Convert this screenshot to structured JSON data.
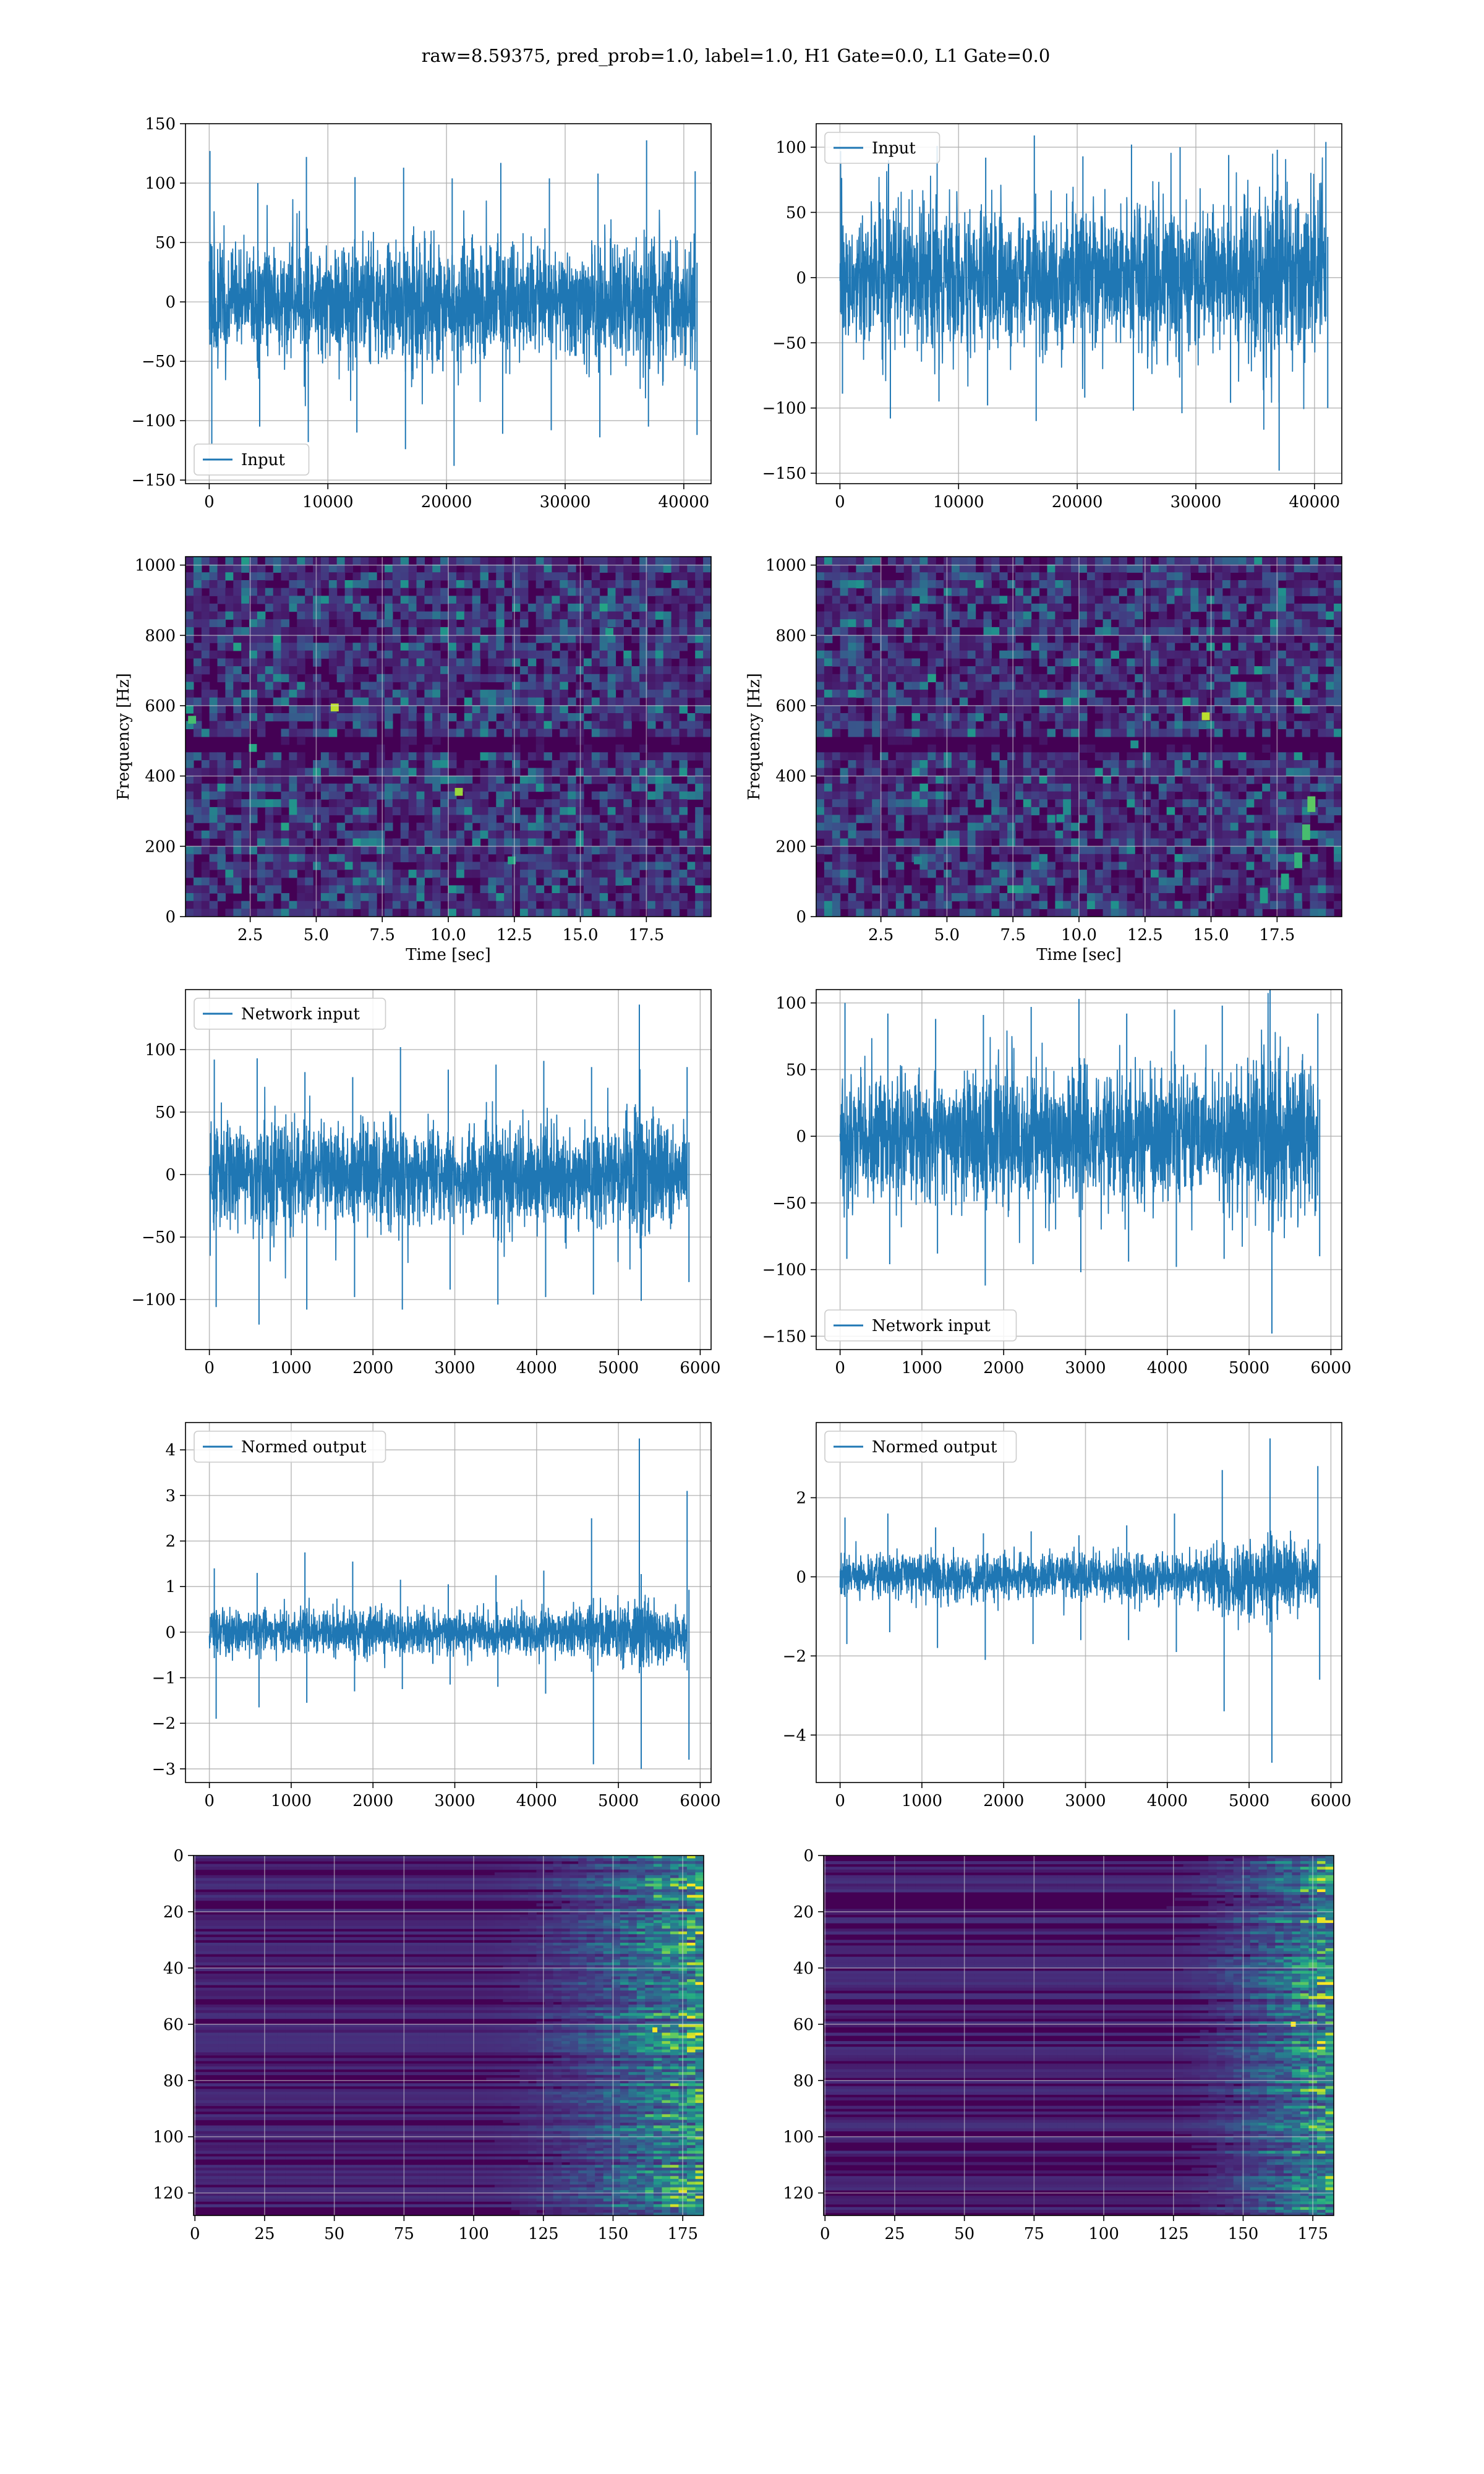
{
  "figure": {
    "title": "raw=8.59375, pred_prob=1.0, label=1.0, H1 Gate=0.0, L1 Gate=0.0"
  },
  "colors": {
    "line": "#1f77b4",
    "grid": "#b0b0b0",
    "viridis_low": "#440154",
    "viridis_mid": "#21918c",
    "viridis_high": "#fde725"
  },
  "chart_data": [
    {
      "id": "input-h1",
      "type": "line",
      "legend": [
        "Input"
      ],
      "legend_position": "lower-left",
      "grid": true,
      "xlim": [
        -2000,
        42300
      ],
      "ylim": [
        -153,
        150
      ],
      "xticks": [
        0,
        10000,
        20000,
        30000,
        40000
      ],
      "xtick_labels": [
        "0",
        "10000",
        "20000",
        "30000",
        "40000"
      ],
      "yticks": [
        -150,
        -100,
        -50,
        0,
        50,
        100,
        150
      ],
      "ytick_labels": [
        "−150",
        "−100",
        "−50",
        "0",
        "50",
        "100",
        "150"
      ],
      "series": [
        {
          "x_range": [
            0,
            40960
          ],
          "envelope_x": [
            0,
            4096,
            8192,
            12288,
            16384,
            20480,
            24576,
            28672,
            32768,
            36864,
            40960
          ],
          "upper": [
            127,
            100,
            122,
            105,
            113,
            104,
            117,
            104,
            108,
            136,
            110
          ],
          "lower": [
            -120,
            -105,
            -118,
            -110,
            -124,
            -138,
            -111,
            -108,
            -114,
            -105,
            -112
          ],
          "core_sd": 24
        }
      ]
    },
    {
      "id": "input-l1",
      "type": "line",
      "legend": [
        "Input"
      ],
      "legend_position": "upper-left",
      "grid": true,
      "xlim": [
        -2000,
        42300
      ],
      "ylim": [
        -158,
        118
      ],
      "xticks": [
        0,
        10000,
        20000,
        30000,
        40000
      ],
      "xtick_labels": [
        "0",
        "10000",
        "20000",
        "30000",
        "40000"
      ],
      "yticks": [
        -150,
        -100,
        -50,
        0,
        50,
        100
      ],
      "ytick_labels": [
        "−150",
        "−100",
        "−50",
        "0",
        "50",
        "100"
      ],
      "series": [
        {
          "x_range": [
            0,
            40960
          ],
          "envelope_x": [
            0,
            4096,
            8192,
            12288,
            16384,
            20480,
            24576,
            28672,
            32768,
            36864,
            40960
          ],
          "upper": [
            97,
            90,
            101,
            92,
            109,
            93,
            102,
            100,
            94,
            98,
            104
          ],
          "lower": [
            -89,
            -108,
            -95,
            -98,
            -110,
            -92,
            -102,
            -104,
            -96,
            -148,
            -100
          ],
          "core_sd": 24
        }
      ]
    },
    {
      "id": "spectrogram-h1",
      "type": "heatmap",
      "xlabel": "Time [sec]",
      "ylabel": "Frequency [Hz]",
      "grid": true,
      "xlim": [
        0.05,
        19.95
      ],
      "ylim": [
        0,
        1024
      ],
      "xticks": [
        2.5,
        5.0,
        7.5,
        10.0,
        12.5,
        15.0,
        17.5
      ],
      "xtick_labels": [
        "2.5",
        "5.0",
        "7.5",
        "10.0",
        "12.5",
        "15.0",
        "17.5"
      ],
      "yticks": [
        0,
        200,
        400,
        600,
        800,
        1000
      ],
      "ytick_labels": [
        "0",
        "200",
        "400",
        "600",
        "800",
        "1000"
      ],
      "cells": [
        66,
        46
      ],
      "noise_level": 0.2,
      "dark_band_hz": [
        490,
        505
      ],
      "hot_spots": [
        [
          5.7,
          595,
          0.9
        ],
        [
          10.4,
          355,
          0.85
        ],
        [
          12.4,
          160,
          0.6
        ],
        [
          2.6,
          480,
          0.6
        ],
        [
          16.1,
          810,
          0.55
        ],
        [
          0.3,
          560,
          0.7
        ]
      ],
      "chirp": null
    },
    {
      "id": "spectrogram-l1",
      "type": "heatmap",
      "xlabel": "Time [sec]",
      "ylabel": "Frequency [Hz]",
      "grid": true,
      "xlim": [
        0.05,
        19.95
      ],
      "ylim": [
        0,
        1024
      ],
      "xticks": [
        2.5,
        5.0,
        7.5,
        10.0,
        12.5,
        15.0,
        17.5
      ],
      "xtick_labels": [
        "2.5",
        "5.0",
        "7.5",
        "10.0",
        "12.5",
        "15.0",
        "17.5"
      ],
      "yticks": [
        0,
        200,
        400,
        600,
        800,
        1000
      ],
      "ytick_labels": [
        "0",
        "200",
        "400",
        "600",
        "800",
        "1000"
      ],
      "cells": [
        66,
        46
      ],
      "noise_level": 0.2,
      "dark_band_hz": [
        490,
        505
      ],
      "hot_spots": [
        [
          14.8,
          570,
          0.9
        ],
        [
          12.1,
          490,
          0.5
        ],
        [
          9.3,
          280,
          0.5
        ],
        [
          3.9,
          160,
          0.45
        ]
      ],
      "chirp": [
        [
          17.0,
          60
        ],
        [
          17.8,
          100
        ],
        [
          18.3,
          160
        ],
        [
          18.6,
          240
        ],
        [
          18.8,
          320
        ]
      ]
    },
    {
      "id": "network-input-h1",
      "type": "line",
      "legend": [
        "Network input"
      ],
      "legend_position": "upper-left",
      "grid": true,
      "xlim": [
        -292,
        6133
      ],
      "ylim": [
        -140,
        148
      ],
      "xticks": [
        0,
        1000,
        2000,
        3000,
        4000,
        5000,
        6000
      ],
      "xtick_labels": [
        "0",
        "1000",
        "2000",
        "3000",
        "4000",
        "5000",
        "6000"
      ],
      "yticks": [
        -100,
        -50,
        0,
        50,
        100
      ],
      "ytick_labels": [
        "−100",
        "−50",
        "0",
        "50",
        "100"
      ],
      "series": [
        {
          "x_range": [
            0,
            5840
          ],
          "envelope_x": [
            0,
            584,
            1168,
            1752,
            2336,
            2920,
            3504,
            4088,
            4672,
            5256,
            5840
          ],
          "upper": [
            92,
            93,
            82,
            78,
            102,
            84,
            88,
            91,
            86,
            136,
            86
          ],
          "lower": [
            -106,
            -120,
            -108,
            -98,
            -108,
            -92,
            -104,
            -98,
            -96,
            -101,
            -86
          ],
          "core_sd": 22
        }
      ]
    },
    {
      "id": "network-input-l1",
      "type": "line",
      "legend": [
        "Network input"
      ],
      "legend_position": "lower-left",
      "grid": true,
      "xlim": [
        -292,
        6133
      ],
      "ylim": [
        -160,
        110
      ],
      "xticks": [
        0,
        1000,
        2000,
        3000,
        4000,
        5000,
        6000
      ],
      "xtick_labels": [
        "0",
        "1000",
        "2000",
        "3000",
        "4000",
        "5000",
        "6000"
      ],
      "yticks": [
        -150,
        -100,
        -50,
        0,
        50,
        100
      ],
      "ytick_labels": [
        "−150",
        "−100",
        "−50",
        "0",
        "50",
        "100"
      ],
      "series": [
        {
          "x_range": [
            0,
            5840
          ],
          "envelope_x": [
            0,
            584,
            1168,
            1752,
            2336,
            2920,
            3504,
            4088,
            4672,
            5256,
            5840
          ],
          "upper": [
            100,
            92,
            88,
            91,
            97,
            103,
            92,
            95,
            98,
            110,
            92
          ],
          "lower": [
            -92,
            -96,
            -88,
            -112,
            -96,
            -102,
            -94,
            -98,
            -92,
            -148,
            -90
          ],
          "core_sd": 21
        }
      ]
    },
    {
      "id": "normed-output-h1",
      "type": "line",
      "legend": [
        "Normed output"
      ],
      "legend_position": "upper-left",
      "grid": true,
      "xlim": [
        -292,
        6133
      ],
      "ylim": [
        -3.3,
        4.6
      ],
      "xticks": [
        0,
        1000,
        2000,
        3000,
        4000,
        5000,
        6000
      ],
      "xtick_labels": [
        "0",
        "1000",
        "2000",
        "3000",
        "4000",
        "5000",
        "6000"
      ],
      "yticks": [
        -3,
        -2,
        -1,
        0,
        1,
        2,
        3,
        4
      ],
      "ytick_labels": [
        "−3",
        "−2",
        "−1",
        "0",
        "1",
        "2",
        "3",
        "4"
      ],
      "series": [
        {
          "x_range": [
            0,
            5840
          ],
          "envelope_x": [
            0,
            584,
            1168,
            1752,
            2336,
            2920,
            3504,
            4088,
            4672,
            5256,
            5840
          ],
          "upper": [
            1.4,
            1.3,
            1.75,
            1.55,
            1.15,
            1.05,
            1.25,
            1.35,
            2.5,
            4.25,
            3.1
          ],
          "lower": [
            -1.9,
            -1.65,
            -1.55,
            -1.3,
            -1.25,
            -1.15,
            -1.2,
            -1.35,
            -2.9,
            -3.0,
            -2.8
          ],
          "core_sd": 0.3
        }
      ]
    },
    {
      "id": "normed-output-l1",
      "type": "line",
      "legend": [
        "Normed output"
      ],
      "legend_position": "upper-left",
      "grid": true,
      "xlim": [
        -292,
        6133
      ],
      "ylim": [
        -5.2,
        3.9
      ],
      "xticks": [
        0,
        1000,
        2000,
        3000,
        4000,
        5000,
        6000
      ],
      "xtick_labels": [
        "0",
        "1000",
        "2000",
        "3000",
        "4000",
        "5000",
        "6000"
      ],
      "yticks": [
        -4,
        -2,
        0,
        2
      ],
      "ytick_labels": [
        "−4",
        "−2",
        "0",
        "2"
      ],
      "series": [
        {
          "x_range": [
            0,
            5840
          ],
          "envelope_x": [
            0,
            584,
            1168,
            1752,
            2336,
            2920,
            3504,
            4088,
            4672,
            5256,
            5840
          ],
          "upper": [
            1.5,
            1.6,
            1.25,
            1.1,
            1.15,
            1.05,
            1.3,
            1.6,
            2.7,
            3.5,
            2.8
          ],
          "lower": [
            -1.7,
            -1.4,
            -1.8,
            -2.1,
            -1.7,
            -1.6,
            -1.6,
            -1.9,
            -3.4,
            -4.7,
            -2.6
          ],
          "core_sd": 0.35
        }
      ]
    },
    {
      "id": "activation-map-h1",
      "type": "heatmap",
      "grid": true,
      "xlim": [
        -0.5,
        182.5
      ],
      "ylim": [
        128,
        0
      ],
      "xticks": [
        0,
        25,
        50,
        75,
        100,
        125,
        150,
        175
      ],
      "xtick_labels": [
        "0",
        "25",
        "50",
        "75",
        "100",
        "125",
        "150",
        "175"
      ],
      "yticks": [
        0,
        20,
        40,
        60,
        80,
        100,
        120
      ],
      "ytick_labels": [
        "0",
        "20",
        "40",
        "60",
        "80",
        "100",
        "120"
      ],
      "shape": [
        128,
        183
      ],
      "onset_col": 100,
      "peak": [
        165,
        62
      ]
    },
    {
      "id": "activation-map-l1",
      "type": "heatmap",
      "grid": true,
      "xlim": [
        -0.5,
        182.5
      ],
      "ylim": [
        128,
        0
      ],
      "xticks": [
        0,
        25,
        50,
        75,
        100,
        125,
        150,
        175
      ],
      "xtick_labels": [
        "0",
        "25",
        "50",
        "75",
        "100",
        "125",
        "150",
        "175"
      ],
      "yticks": [
        0,
        20,
        40,
        60,
        80,
        100,
        120
      ],
      "ytick_labels": [
        "0",
        "20",
        "40",
        "60",
        "80",
        "100",
        "120"
      ],
      "shape": [
        128,
        183
      ],
      "onset_col": 120,
      "peak": [
        168,
        60
      ]
    }
  ]
}
